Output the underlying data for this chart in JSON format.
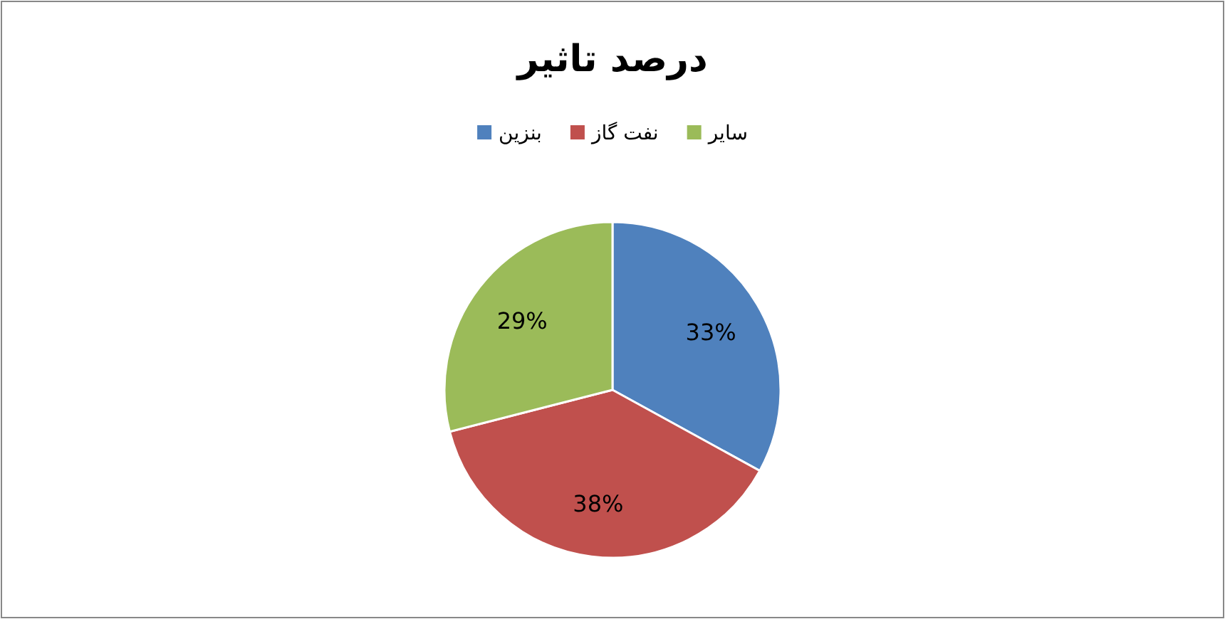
{
  "chart_data": {
    "type": "pie",
    "title": "درصد تاثیر",
    "categories": [
      "بنزین",
      "نفت گاز",
      "سایر"
    ],
    "values": [
      33,
      38,
      29
    ],
    "colors": [
      "#4f81bd",
      "#c0504d",
      "#9bbb59"
    ],
    "value_labels": [
      "33%",
      "38%",
      "29%"
    ],
    "legend": "top"
  }
}
